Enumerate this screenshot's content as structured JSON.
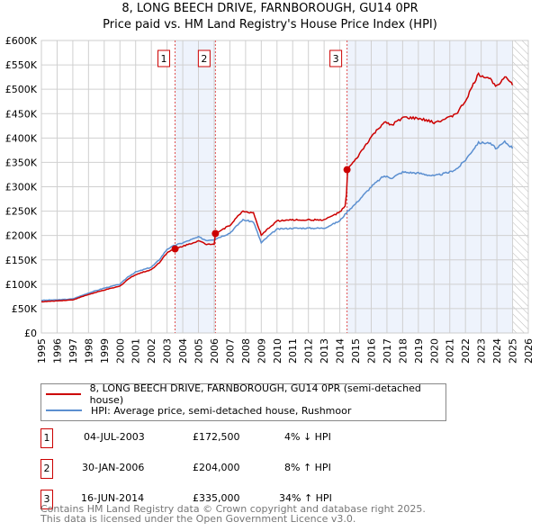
{
  "title_line1": "8, LONG BEECH DRIVE, FARNBOROUGH, GU14 0PR",
  "title_line2": "Price paid vs. HM Land Registry's House Price Index (HPI)",
  "chart_data": {
    "type": "line",
    "title": "Price paid vs. HM Land Registry's House Price Index (HPI)",
    "xlim": [
      1995,
      2026
    ],
    "ylim": [
      0,
      600000
    ],
    "yticks": [
      0,
      50000,
      100000,
      150000,
      200000,
      250000,
      300000,
      350000,
      400000,
      450000,
      500000,
      550000,
      600000
    ],
    "ytick_labels": [
      "£0",
      "£50K",
      "£100K",
      "£150K",
      "£200K",
      "£250K",
      "£300K",
      "£350K",
      "£400K",
      "£450K",
      "£500K",
      "£550K",
      "£600K"
    ],
    "xticks": [
      1995,
      1996,
      1997,
      1998,
      1999,
      2000,
      2001,
      2002,
      2003,
      2004,
      2005,
      2006,
      2007,
      2008,
      2009,
      2010,
      2011,
      2012,
      2013,
      2014,
      2015,
      2016,
      2017,
      2018,
      2019,
      2020,
      2021,
      2022,
      2023,
      2024,
      2025,
      2026
    ],
    "grid": true,
    "series": [
      {
        "name": "8, LONG BEECH DRIVE, FARNBOROUGH, GU14 0PR (semi-detached house)",
        "color": "#cc0000",
        "x": [
          1995,
          1996,
          1997,
          1998,
          1999,
          2000,
          2000.5,
          2001,
          2002,
          2002.5,
          2003,
          2003.5,
          2004,
          2005,
          2005.5,
          2006,
          2006.08,
          2007,
          2007.8,
          2008.5,
          2009,
          2009.5,
          2010,
          2011,
          2012,
          2013,
          2014,
          2014.4,
          2014.46,
          2015,
          2016,
          2016.8,
          2017.3,
          2018,
          2019,
          2020,
          2021,
          2021.5,
          2022,
          2022.8,
          2023.5,
          2024,
          2024.5,
          2025
        ],
        "y": [
          64000,
          66000,
          68000,
          79000,
          88000,
          96000,
          110000,
          120000,
          130000,
          144000,
          165000,
          172500,
          178000,
          189000,
          182000,
          183000,
          204000,
          221000,
          250000,
          246000,
          200000,
          216000,
          230000,
          232000,
          232000,
          232000,
          248000,
          262000,
          335000,
          355000,
          402000,
          432000,
          426000,
          442000,
          440000,
          432000,
          442000,
          453000,
          476000,
          530000,
          523000,
          506000,
          528000,
          510000
        ]
      },
      {
        "name": "HPI: Average price, semi-detached house, Rushmoor",
        "color": "#5b8fd0",
        "x": [
          1995,
          1996,
          1997,
          1998,
          1999,
          2000,
          2000.5,
          2001,
          2002,
          2002.5,
          2003,
          2003.5,
          2004,
          2005,
          2005.5,
          2006,
          2007,
          2007.8,
          2008.5,
          2009,
          2009.5,
          2010,
          2011,
          2012,
          2013,
          2014,
          2014.5,
          2015,
          2016,
          2016.8,
          2017.3,
          2018,
          2019,
          2020,
          2021,
          2021.5,
          2022,
          2022.8,
          2023.5,
          2024,
          2024.5,
          2025
        ],
        "y": [
          67000,
          68000,
          70000,
          82000,
          92000,
          100000,
          115000,
          125000,
          135000,
          150000,
          172000,
          180000,
          185000,
          197000,
          190000,
          192000,
          205000,
          232000,
          228000,
          185000,
          200000,
          213000,
          215000,
          215000,
          215000,
          230000,
          250000,
          265000,
          300000,
          322000,
          318000,
          330000,
          328000,
          322000,
          330000,
          338000,
          355000,
          390000,
          390000,
          378000,
          392000,
          380000
        ]
      }
    ],
    "transactions": [
      {
        "label": "1",
        "year": 2003.51,
        "price": 172500
      },
      {
        "label": "2",
        "year": 2006.08,
        "price": 204000
      },
      {
        "label": "3",
        "year": 2014.46,
        "price": 335000
      }
    ],
    "shaded_ranges": [
      [
        2003.51,
        2006.08
      ],
      [
        2014.46,
        2025.0
      ]
    ],
    "hatched_range": [
      2025.0,
      2026
    ]
  },
  "legend": {
    "property": "8, LONG BEECH DRIVE, FARNBOROUGH, GU14 0PR (semi-detached house)",
    "hpi": "HPI: Average price, semi-detached house, Rushmoor"
  },
  "table": [
    {
      "num": "1",
      "date": "04-JUL-2003",
      "price": "£172,500",
      "hpi": "4% ↓ HPI"
    },
    {
      "num": "2",
      "date": "30-JAN-2006",
      "price": "£204,000",
      "hpi": "8% ↑ HPI"
    },
    {
      "num": "3",
      "date": "16-JUN-2014",
      "price": "£335,000",
      "hpi": "34% ↑ HPI"
    }
  ],
  "footer": {
    "line1": "Contains HM Land Registry data © Crown copyright and database right 2025.",
    "line2": "This data is licensed under the Open Government Licence v3.0."
  }
}
